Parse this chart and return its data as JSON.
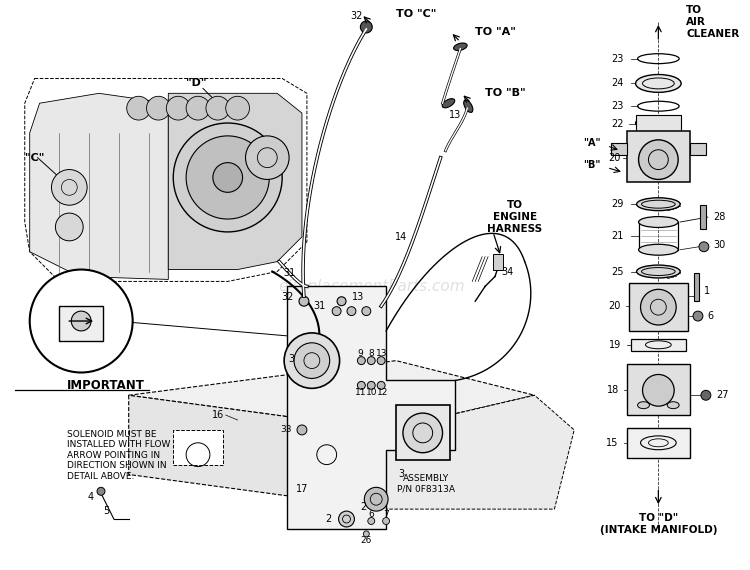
{
  "bg_color": "#ffffff",
  "watermark": "eReplacementParts.com",
  "watermark_color": "#c8c8c8",
  "watermark_alpha": 0.55,
  "line_color": "#000000",
  "labels": {
    "to_c": "TO \"C\"",
    "to_a": "TO \"A\"",
    "to_b": "TO \"B\"",
    "label_d": "\"D\"",
    "label_c": "\"C\"",
    "to_air_cleaner": "TO\nAIR\nCLEANER",
    "to_engine_harness": "TO\nENGINE\nHARNESS",
    "to_d_intake": "TO \"D\"\n(INTAKE MANIFOLD)",
    "assembly": "ASSEMBLY\nP/N 0F8313A",
    "important_title": "IMPORTANT",
    "important_text": "SOLENOID MUST BE\nINSTALLED WITH FLOW\nARROW POINTING IN\nDIRECTION SHOWN IN\nDETAIL ABOVE.",
    "label_a": "\"A\"",
    "label_b": "\"B\""
  }
}
